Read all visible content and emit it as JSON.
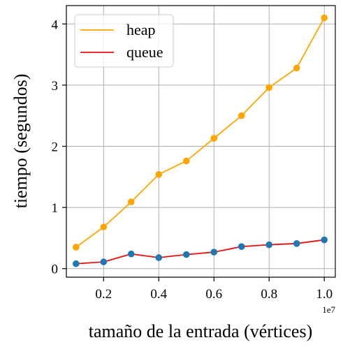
{
  "chart_data": {
    "type": "line",
    "title": "",
    "xlabel": "tamaño de la entrada (vértices)",
    "ylabel": "tiempo (segundos)",
    "x_offset_label": "1e7",
    "x": [
      0.1,
      0.2,
      0.3,
      0.4,
      0.5,
      0.6,
      0.7,
      0.8,
      0.9,
      1.0
    ],
    "xlim": [
      0.065,
      1.04
    ],
    "ylim": [
      -0.14,
      4.3
    ],
    "xticks": [
      0.2,
      0.4,
      0.6,
      0.8,
      1.0
    ],
    "xtick_labels": [
      "0.2",
      "0.4",
      "0.6",
      "0.8",
      "1.0"
    ],
    "yticks": [
      0,
      1,
      2,
      3,
      4
    ],
    "ytick_labels": [
      "0",
      "1",
      "2",
      "3",
      "4"
    ],
    "grid": true,
    "legend_position": "top-left",
    "series": [
      {
        "name": "heap",
        "color": "#ffa500",
        "marker_color": "#ffa500",
        "values": [
          0.35,
          0.68,
          1.09,
          1.54,
          1.76,
          2.13,
          2.5,
          2.96,
          3.28,
          4.1
        ]
      },
      {
        "name": "queue",
        "color": "#e8120c",
        "marker_color": "#1f77b4",
        "values": [
          0.08,
          0.11,
          0.24,
          0.18,
          0.23,
          0.27,
          0.36,
          0.39,
          0.41,
          0.47
        ]
      }
    ]
  }
}
